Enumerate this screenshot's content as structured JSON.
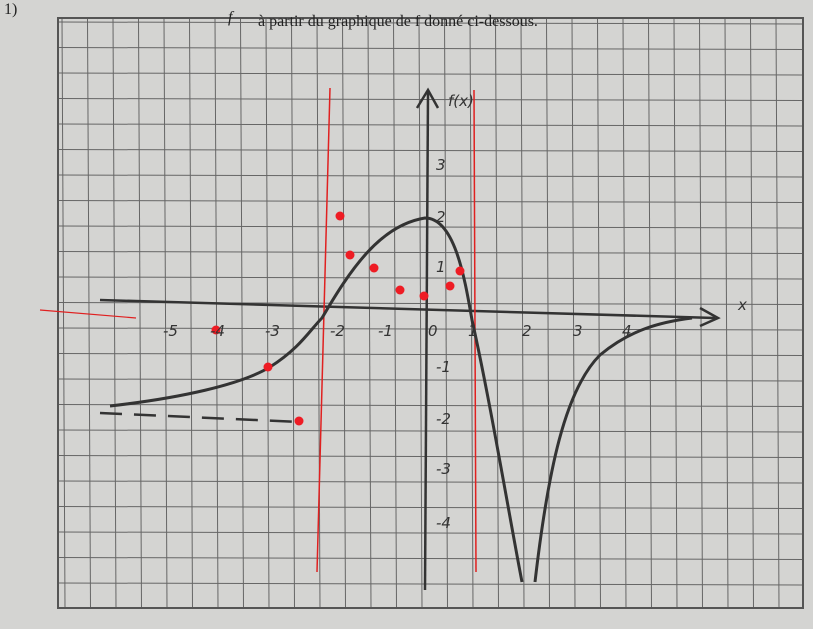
{
  "header": {
    "number": "1)",
    "symbol": "f",
    "text": "à partir du graphique de f donné ci-dessous."
  },
  "axes": {
    "y_name": "f(x)",
    "x_name": "x",
    "x_labels": [
      "-5",
      "-4",
      "-3",
      "-2",
      "-1",
      "0",
      "1",
      "2",
      "3",
      "4"
    ],
    "y_labels": [
      "3",
      "2",
      "1",
      "-1",
      "-2",
      "-3",
      "-4"
    ]
  }
}
